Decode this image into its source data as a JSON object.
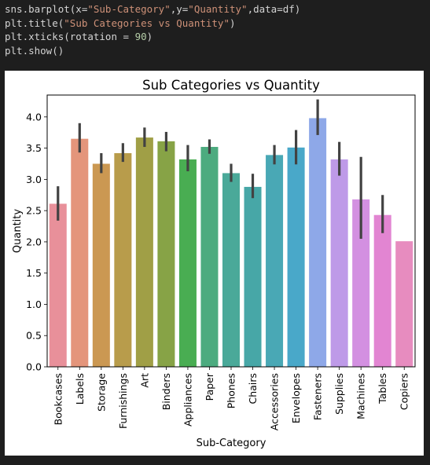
{
  "code": {
    "lines": [
      [
        {
          "t": "sns.barplot(x=",
          "c": ""
        },
        {
          "t": "\"Sub-Category\"",
          "c": "str"
        },
        {
          "t": ",y=",
          "c": ""
        },
        {
          "t": "\"Quantity\"",
          "c": "str"
        },
        {
          "t": ",data=df)",
          "c": ""
        }
      ],
      [
        {
          "t": "plt.title(",
          "c": ""
        },
        {
          "t": "\"Sub Categories vs Quantity\"",
          "c": "str"
        },
        {
          "t": ")",
          "c": ""
        }
      ],
      [
        {
          "t": "plt.xticks(rotation = ",
          "c": ""
        },
        {
          "t": "90",
          "c": "num"
        },
        {
          "t": ")",
          "c": ""
        }
      ],
      [
        {
          "t": "plt.show()",
          "c": ""
        }
      ]
    ]
  },
  "chart_data": {
    "type": "bar",
    "title": "Sub Categories vs Quantity",
    "xlabel": "Sub-Category",
    "ylabel": "Quantity",
    "ylim": [
      0,
      4.35
    ],
    "yticks": [
      0.0,
      0.5,
      1.0,
      1.5,
      2.0,
      2.5,
      3.0,
      3.5,
      4.0
    ],
    "ytick_labels": [
      "0.0",
      "0.5",
      "1.0",
      "1.5",
      "2.0",
      "2.5",
      "3.0",
      "3.5",
      "4.0"
    ],
    "xtick_rotation": 90,
    "grid": false,
    "legend": "none",
    "categories": [
      "Bookcases",
      "Labels",
      "Storage",
      "Furnishings",
      "Art",
      "Binders",
      "Appliances",
      "Paper",
      "Phones",
      "Chairs",
      "Accessories",
      "Envelopes",
      "Fasteners",
      "Supplies",
      "Machines",
      "Tables",
      "Copiers"
    ],
    "values": [
      2.61,
      3.65,
      3.25,
      3.42,
      3.67,
      3.61,
      3.32,
      3.52,
      3.1,
      2.88,
      3.39,
      3.51,
      3.98,
      3.32,
      2.68,
      2.43,
      2.01
    ],
    "ci": [
      [
        2.34,
        2.89
      ],
      [
        3.43,
        3.9
      ],
      [
        3.1,
        3.42
      ],
      [
        3.28,
        3.58
      ],
      [
        3.52,
        3.83
      ],
      [
        3.45,
        3.76
      ],
      [
        3.13,
        3.55
      ],
      [
        3.41,
        3.64
      ],
      [
        2.96,
        3.25
      ],
      [
        2.7,
        3.09
      ],
      [
        3.24,
        3.55
      ],
      [
        3.24,
        3.79
      ],
      [
        3.71,
        4.28
      ],
      [
        3.06,
        3.6
      ],
      [
        2.05,
        3.36
      ],
      [
        2.14,
        2.75
      ],
      [
        2.01,
        2.01
      ]
    ],
    "colors": [
      "#e8909a",
      "#e4957b",
      "#cb9852",
      "#b89c4b",
      "#a09f46",
      "#87a346",
      "#49ad52",
      "#4cab7f",
      "#4aa999",
      "#47a7a7",
      "#49a8b5",
      "#49a8c9",
      "#8ea8e8",
      "#be9ae8",
      "#d390e1",
      "#e285d2",
      "#e78cbf"
    ],
    "errorbar_color": "#424242"
  }
}
